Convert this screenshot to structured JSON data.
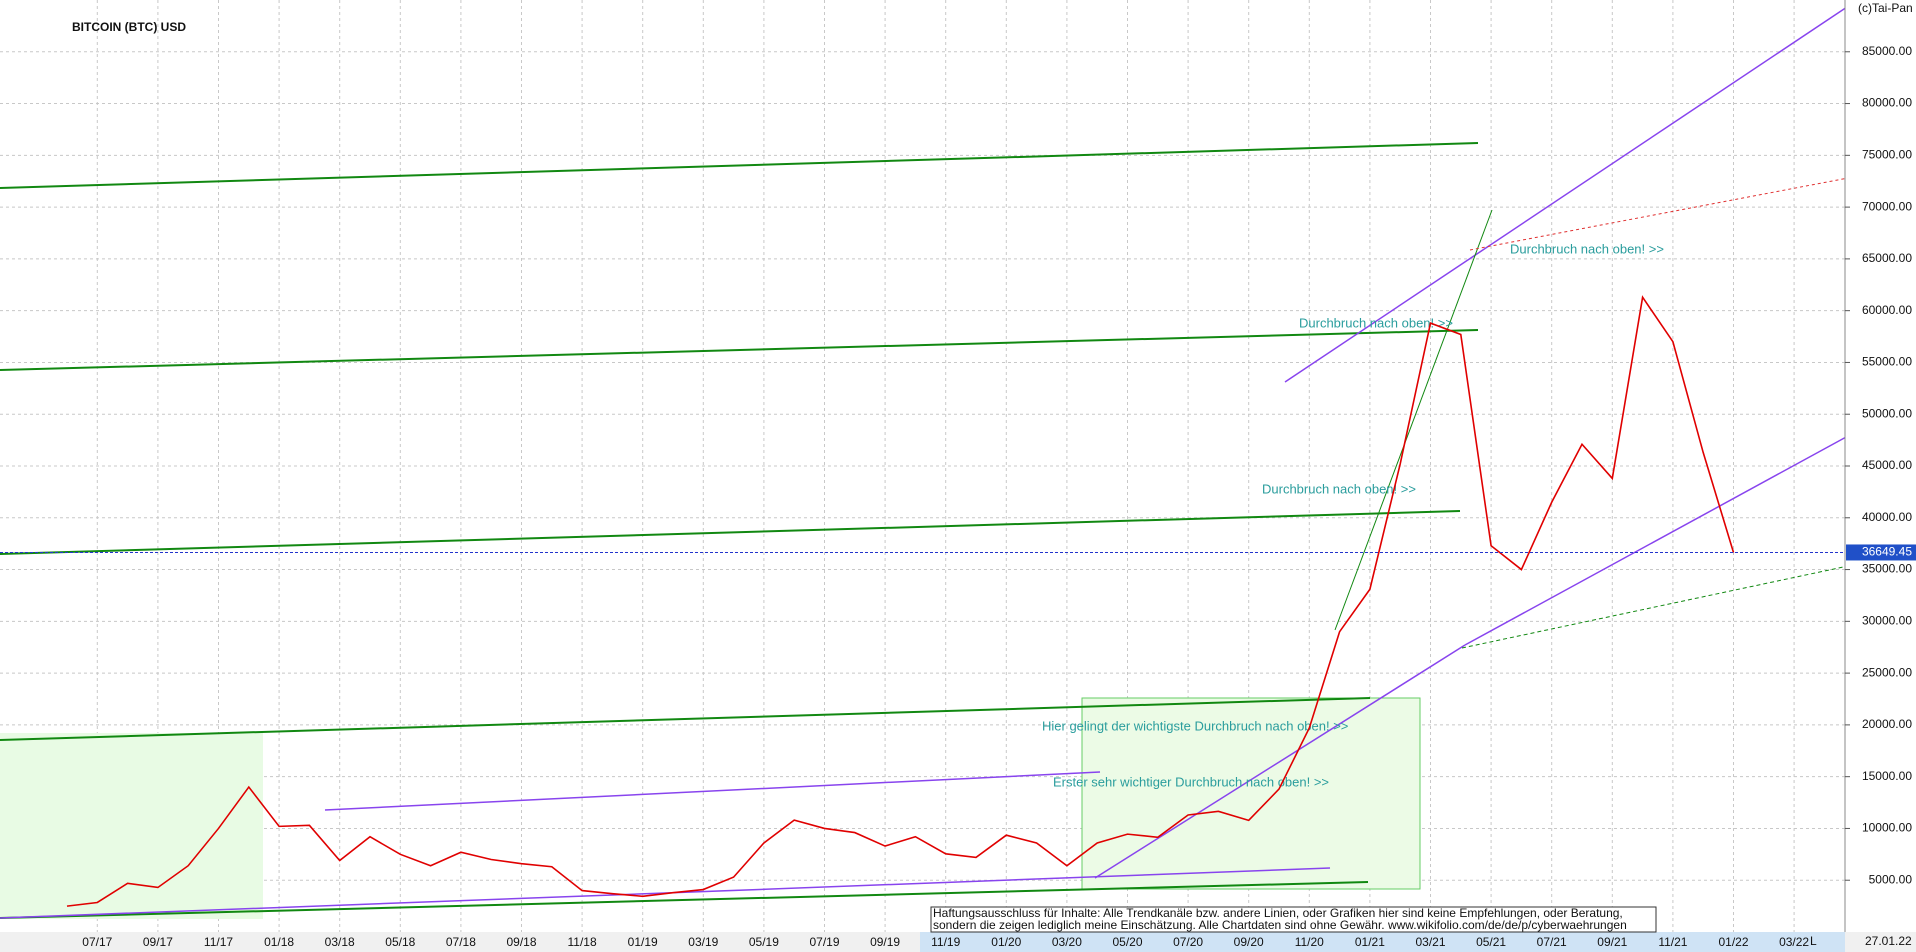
{
  "chart_data": {
    "type": "line",
    "title": "BITCOIN (BTC) USD",
    "source": "(c)Tai-Pan",
    "date": "27.01.22",
    "scale_label": "L",
    "categories": [
      null,
      "07/17",
      null,
      "09/17",
      null,
      "11/17",
      null,
      "01/18",
      null,
      "03/18",
      null,
      "05/18",
      null,
      "07/18",
      null,
      "09/18",
      null,
      "11/18",
      null,
      "01/19",
      null,
      "03/19",
      null,
      "05/19",
      null,
      "07/19",
      null,
      "09/19",
      null,
      "11/19",
      null,
      "01/20",
      null,
      "03/20",
      null,
      "05/20",
      null,
      "07/20",
      null,
      "09/20",
      null,
      "11/20",
      null,
      "01/21",
      null,
      "03/21",
      null,
      "05/21",
      null,
      "07/21",
      null,
      "09/21",
      null,
      "11/21",
      null,
      "01/22",
      null,
      "03/22"
    ],
    "series": [
      {
        "name": "BTC",
        "color": "#e00000",
        "values": [
          2500,
          2850,
          4700,
          4300,
          6400,
          10000,
          14000,
          10200,
          10300,
          6900,
          9200,
          7500,
          6400,
          7700,
          7000,
          6600,
          6300,
          4000,
          3700,
          3450,
          3800,
          4100,
          5300,
          8600,
          10800,
          10000,
          9600,
          8300,
          9200,
          7550,
          7200,
          9350,
          8600,
          6400,
          8600,
          9450,
          9150,
          11300,
          11650,
          10780,
          13800,
          19700,
          29000,
          33100,
          45200,
          58800,
          57700,
          37300,
          35000,
          41500,
          47100,
          43800,
          61300,
          57000,
          46300,
          36650,
          null,
          null
        ]
      }
    ],
    "last_price": 36649.45,
    "ylim": [
      0,
      90000
    ],
    "yticks": [
      {
        "value": 5000,
        "label": "5000.00"
      },
      {
        "value": 10000,
        "label": "10000.00"
      },
      {
        "value": 15000,
        "label": "15000.00"
      },
      {
        "value": 20000,
        "label": "20000.00"
      },
      {
        "value": 25000,
        "label": "25000.00"
      },
      {
        "value": 30000,
        "label": "30000.00"
      },
      {
        "value": 35000,
        "label": "35000.00"
      },
      {
        "value": 40000,
        "label": "40000.00"
      },
      {
        "value": 45000,
        "label": "45000.00"
      },
      {
        "value": 50000,
        "label": "50000.00"
      },
      {
        "value": 55000,
        "label": "55000.00"
      },
      {
        "value": 60000,
        "label": "60000.00"
      },
      {
        "value": 65000,
        "label": "65000.00"
      },
      {
        "value": 70000,
        "label": "70000.00"
      },
      {
        "value": 75000,
        "label": "75000.00"
      },
      {
        "value": 80000,
        "label": "80000.00"
      },
      {
        "value": 85000,
        "label": "85000.00"
      }
    ],
    "grid": true,
    "annotations": [
      "Durchbruch nach oben! >>",
      "Durchbruch nach oben! >>",
      "Durchbruch nach oben! >>",
      "Hier gelingt der wichtigste Durchbruch nach oben! >>",
      "Erster sehr wichtiger Durchbruch nach oben! >>"
    ],
    "disclaimer": [
      "Haftungsausschluss für Inhalte: Alle Trendkanäle bzw. andere Linien, oder Grafiken hier sind keine Empfehlungen, oder Beratung,",
      "sondern die zeigen lediglich meine  Einschätzung. Alle Chartdaten sind ohne Gewähr.  www.wikifolio.com/de/de/p/cyberwaehrungen"
    ]
  }
}
